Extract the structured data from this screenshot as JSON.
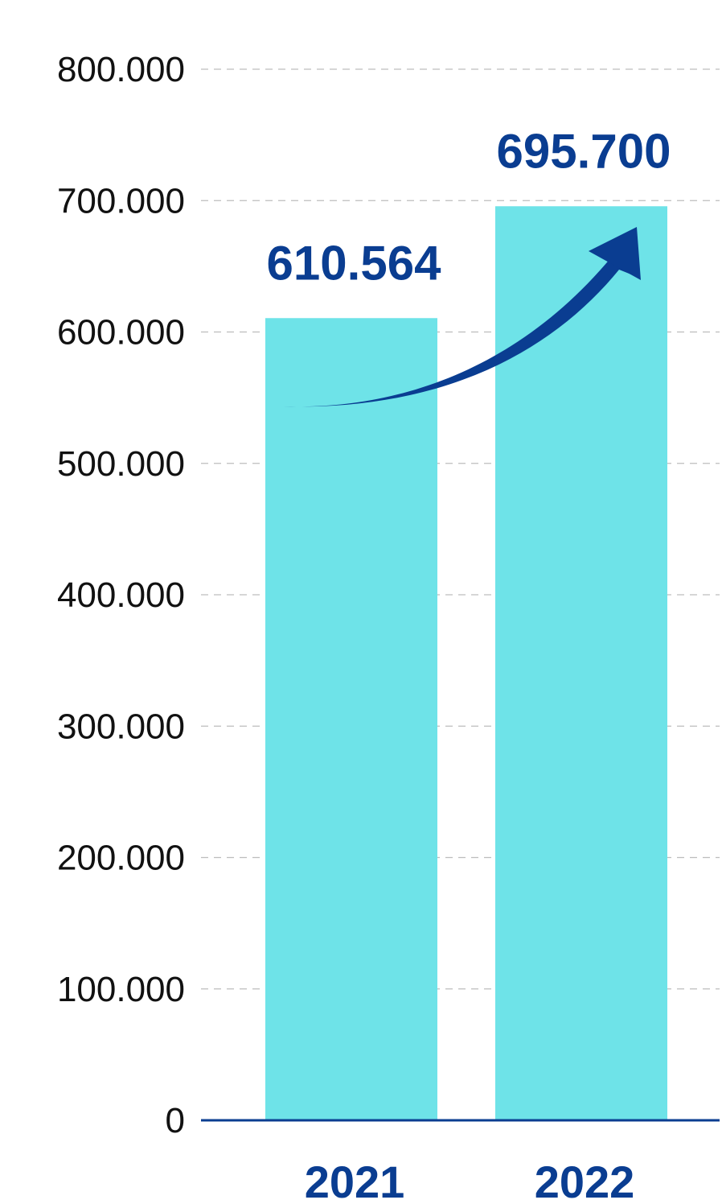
{
  "chart_data": {
    "type": "bar",
    "title": "",
    "xlabel": "",
    "ylabel": "",
    "categories": [
      "2021",
      "2022"
    ],
    "values": [
      610564,
      695700
    ],
    "data_labels": [
      "610.564",
      "695.700"
    ],
    "ylim": [
      0,
      800000
    ],
    "yticks": [
      0,
      100000,
      200000,
      300000,
      400000,
      500000,
      600000,
      700000,
      800000
    ],
    "ytick_labels": [
      "0",
      "100.000",
      "200.000",
      "300.000",
      "400.000",
      "500.000",
      "600.000",
      "700.000",
      "800.000"
    ],
    "grid": true,
    "grid_style": "dashed",
    "legend": "none",
    "annotation": "upward-trend-arrow",
    "colors": {
      "bar": "#6ee3e8",
      "label": "#0a3d91",
      "axis": "#0a3d91",
      "grid": "#bdbdbd",
      "tick_text": "#111111"
    }
  }
}
